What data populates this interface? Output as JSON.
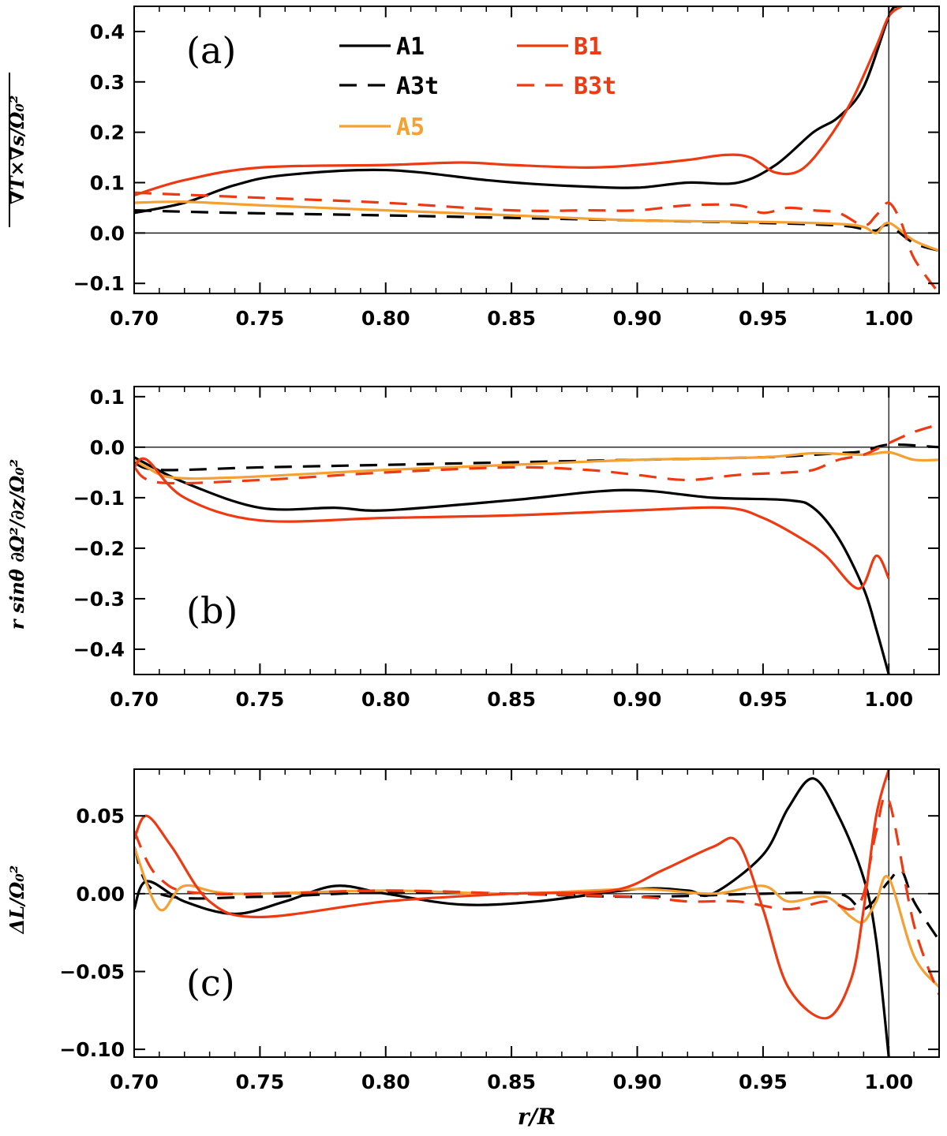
{
  "colors": {
    "A1": "#000000",
    "A3t": "#000000",
    "A5": "#f5a033",
    "B1": "#ee3a12",
    "B3t": "#ee3a12"
  },
  "legend": [
    {
      "key": "A1",
      "label": "A1",
      "color": "#000000",
      "dash": "solid"
    },
    {
      "key": "A3t",
      "label": "A3t",
      "color": "#000000",
      "dash": "dashed"
    },
    {
      "key": "A5",
      "label": "A5",
      "color": "#f5a033",
      "dash": "solid"
    },
    {
      "key": "B1",
      "label": "B1",
      "color": "#ee3a12",
      "dash": "solid"
    },
    {
      "key": "B3t",
      "label": "B3t",
      "color": "#ee3a12",
      "dash": "dashed"
    }
  ],
  "chart_data": [
    {
      "type": "line",
      "panel_label": "(a)",
      "ylabel": "∇T×∇s/Ω₀²",
      "xlabel": "",
      "xlim": [
        0.7,
        1.02
      ],
      "ylim": [
        -0.12,
        0.45
      ],
      "xticks": [
        "0.70",
        "0.75",
        "0.80",
        "0.85",
        "0.90",
        "0.95",
        "1.00"
      ],
      "yticks": [
        "-0.1",
        "0.0",
        "0.1",
        "0.2",
        "0.3",
        "0.4"
      ],
      "ytick_values": [
        -0.1,
        0.0,
        0.1,
        0.2,
        0.3,
        0.4
      ],
      "series": [
        {
          "name": "A1",
          "x": [
            0.7,
            0.72,
            0.74,
            0.76,
            0.8,
            0.84,
            0.86,
            0.88,
            0.9,
            0.92,
            0.94,
            0.955,
            0.97,
            0.98,
            0.99,
            1.0,
            1.003
          ],
          "y": [
            0.04,
            0.06,
            0.095,
            0.115,
            0.125,
            0.105,
            0.097,
            0.092,
            0.09,
            0.1,
            0.1,
            0.135,
            0.2,
            0.23,
            0.29,
            0.43,
            0.45
          ]
        },
        {
          "name": "A3t",
          "x": [
            0.7,
            0.74,
            0.8,
            0.85,
            0.9,
            0.95,
            0.98,
            0.99,
            0.995,
            1.0,
            1.01,
            1.02
          ],
          "y": [
            0.045,
            0.04,
            0.035,
            0.03,
            0.025,
            0.02,
            0.015,
            0.008,
            0.005,
            0.015,
            -0.02,
            -0.035
          ]
        },
        {
          "name": "A5",
          "x": [
            0.7,
            0.72,
            0.75,
            0.8,
            0.85,
            0.9,
            0.95,
            0.98,
            0.99,
            0.995,
            1.0,
            1.01,
            1.02
          ],
          "y": [
            0.06,
            0.062,
            0.055,
            0.045,
            0.035,
            0.025,
            0.022,
            0.018,
            0.012,
            0.0,
            0.02,
            -0.015,
            -0.035
          ]
        },
        {
          "name": "B1",
          "x": [
            0.7,
            0.72,
            0.75,
            0.8,
            0.83,
            0.85,
            0.88,
            0.9,
            0.92,
            0.935,
            0.945,
            0.955,
            0.965,
            0.975,
            0.985,
            0.995,
            1.0,
            1.005
          ],
          "y": [
            0.075,
            0.105,
            0.13,
            0.135,
            0.14,
            0.135,
            0.13,
            0.135,
            0.145,
            0.155,
            0.15,
            0.12,
            0.125,
            0.18,
            0.26,
            0.37,
            0.43,
            0.45
          ]
        },
        {
          "name": "B3t",
          "x": [
            0.7,
            0.75,
            0.8,
            0.85,
            0.88,
            0.9,
            0.92,
            0.94,
            0.95,
            0.96,
            0.97,
            0.98,
            0.99,
            0.995,
            1.0,
            1.005,
            1.01,
            1.02
          ],
          "y": [
            0.08,
            0.07,
            0.06,
            0.045,
            0.045,
            0.045,
            0.055,
            0.055,
            0.04,
            0.05,
            0.045,
            0.04,
            0.015,
            0.035,
            0.06,
            0.02,
            -0.05,
            -0.12
          ]
        }
      ]
    },
    {
      "type": "line",
      "panel_label": "(b)",
      "ylabel": "r sinθ ∂Ω²/∂z/Ω₀²",
      "xlabel": "",
      "xlim": [
        0.7,
        1.02
      ],
      "ylim": [
        -0.45,
        0.12
      ],
      "xticks": [
        "0.70",
        "0.75",
        "0.80",
        "0.85",
        "0.90",
        "0.95",
        "1.00"
      ],
      "yticks": [
        "-0.4",
        "-0.3",
        "-0.2",
        "-0.1",
        "0.0",
        "0.1"
      ],
      "ytick_values": [
        -0.4,
        -0.3,
        -0.2,
        -0.1,
        0.0,
        0.1
      ],
      "series": [
        {
          "name": "A1",
          "x": [
            0.7,
            0.72,
            0.75,
            0.78,
            0.8,
            0.85,
            0.895,
            0.93,
            0.96,
            0.97,
            0.98,
            0.99,
            0.995,
            1.0
          ],
          "y": [
            -0.02,
            -0.07,
            -0.12,
            -0.12,
            -0.125,
            -0.105,
            -0.085,
            -0.1,
            -0.105,
            -0.12,
            -0.18,
            -0.28,
            -0.36,
            -0.45
          ]
        },
        {
          "name": "A3t",
          "x": [
            0.7,
            0.71,
            0.75,
            0.8,
            0.85,
            0.9,
            0.95,
            0.97,
            0.98,
            0.99,
            1.0,
            1.02
          ],
          "y": [
            -0.03,
            -0.045,
            -0.04,
            -0.035,
            -0.03,
            -0.025,
            -0.02,
            -0.015,
            -0.012,
            -0.008,
            0.005,
            0.0
          ]
        },
        {
          "name": "A5",
          "x": [
            0.7,
            0.705,
            0.715,
            0.74,
            0.8,
            0.85,
            0.9,
            0.95,
            0.97,
            0.99,
            1.0,
            1.01,
            1.02
          ],
          "y": [
            -0.025,
            -0.04,
            -0.06,
            -0.06,
            -0.045,
            -0.035,
            -0.025,
            -0.02,
            -0.012,
            -0.015,
            -0.01,
            -0.025,
            -0.025
          ]
        },
        {
          "name": "B1",
          "x": [
            0.7,
            0.705,
            0.72,
            0.75,
            0.8,
            0.85,
            0.9,
            0.935,
            0.95,
            0.965,
            0.975,
            0.988,
            0.995,
            1.0
          ],
          "y": [
            -0.04,
            -0.025,
            -0.1,
            -0.145,
            -0.14,
            -0.135,
            -0.125,
            -0.12,
            -0.14,
            -0.18,
            -0.215,
            -0.28,
            -0.215,
            -0.26
          ]
        },
        {
          "name": "B3t",
          "x": [
            0.7,
            0.71,
            0.75,
            0.8,
            0.85,
            0.88,
            0.9,
            0.92,
            0.94,
            0.96,
            0.97,
            0.98,
            0.99,
            1.0,
            1.01,
            1.02
          ],
          "y": [
            -0.04,
            -0.07,
            -0.065,
            -0.05,
            -0.04,
            -0.045,
            -0.055,
            -0.065,
            -0.055,
            -0.05,
            -0.045,
            -0.025,
            -0.015,
            0.008,
            0.03,
            0.045
          ]
        }
      ]
    },
    {
      "type": "line",
      "panel_label": "(c)",
      "ylabel": "ΔL/Ω₀²",
      "xlabel": "r/R",
      "xlim": [
        0.7,
        1.02
      ],
      "ylim": [
        -0.105,
        0.08
      ],
      "xticks": [
        "0.70",
        "0.75",
        "0.80",
        "0.85",
        "0.90",
        "0.95",
        "1.00"
      ],
      "yticks": [
        "-0.10",
        "-0.05",
        "0.00",
        "0.05"
      ],
      "ytick_values": [
        -0.1,
        -0.05,
        0.0,
        0.05
      ],
      "series": [
        {
          "name": "A1",
          "x": [
            0.7,
            0.705,
            0.72,
            0.74,
            0.76,
            0.78,
            0.8,
            0.83,
            0.86,
            0.9,
            0.92,
            0.93,
            0.95,
            0.96,
            0.97,
            0.98,
            0.99,
            0.995,
            1.0
          ],
          "y": [
            -0.01,
            0.008,
            -0.005,
            -0.013,
            -0.005,
            0.005,
            0.0,
            -0.007,
            -0.005,
            0.003,
            0.002,
            0.0,
            0.025,
            0.055,
            0.074,
            0.05,
            0.01,
            -0.03,
            -0.105
          ]
        },
        {
          "name": "A3t",
          "x": [
            0.7,
            0.71,
            0.75,
            0.8,
            0.85,
            0.9,
            0.95,
            0.98,
            0.99,
            1.0,
            1.005,
            1.01,
            1.02
          ],
          "y": [
            0.03,
            0.0,
            -0.002,
            0.001,
            0.0,
            -0.002,
            0.0,
            0.0,
            -0.01,
            0.008,
            0.015,
            -0.005,
            -0.03
          ]
        },
        {
          "name": "A5",
          "x": [
            0.7,
            0.71,
            0.72,
            0.74,
            0.8,
            0.85,
            0.9,
            0.93,
            0.95,
            0.96,
            0.975,
            0.985,
            0.99,
            0.995,
            1.0,
            1.01,
            1.02
          ],
          "y": [
            0.03,
            -0.01,
            0.005,
            0.0,
            0.002,
            0.0,
            0.003,
            0.0,
            0.005,
            -0.005,
            -0.002,
            -0.015,
            -0.018,
            -0.005,
            0.01,
            -0.04,
            -0.06
          ]
        },
        {
          "name": "B1",
          "x": [
            0.7,
            0.705,
            0.715,
            0.73,
            0.75,
            0.8,
            0.85,
            0.89,
            0.91,
            0.93,
            0.94,
            0.95,
            0.96,
            0.975,
            0.985,
            0.99,
            0.995,
            1.0
          ],
          "y": [
            0.035,
            0.05,
            0.03,
            -0.005,
            -0.015,
            -0.005,
            0.0,
            0.002,
            0.015,
            0.03,
            0.033,
            -0.01,
            -0.06,
            -0.08,
            -0.055,
            -0.01,
            0.05,
            0.08
          ]
        },
        {
          "name": "B3t",
          "x": [
            0.7,
            0.71,
            0.73,
            0.8,
            0.85,
            0.9,
            0.92,
            0.94,
            0.96,
            0.975,
            0.985,
            0.99,
            0.995,
            1.0,
            1.01,
            1.02
          ],
          "y": [
            0.04,
            0.01,
            0.0,
            0.002,
            0.0,
            -0.002,
            -0.005,
            -0.005,
            -0.01,
            -0.005,
            -0.01,
            0.0,
            0.04,
            0.06,
            -0.02,
            -0.065
          ]
        }
      ]
    }
  ]
}
